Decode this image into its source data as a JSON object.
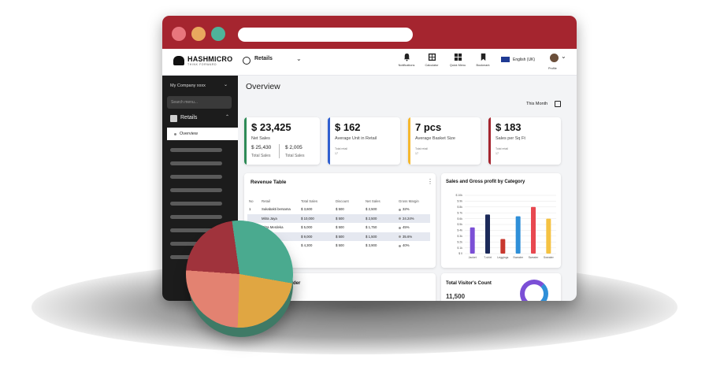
{
  "brand": {
    "name": "HASHMICRO",
    "tagline": "THINK FORWARD"
  },
  "colors": {
    "titlebar": "#a5252f",
    "dot_red": "#e8767d",
    "dot_orange": "#e9a95e",
    "dot_teal": "#4fb39a",
    "sidebar": "#1c1c1c",
    "green": "#2e8b57",
    "blue": "#2f5fd0",
    "yellow": "#f5b82e",
    "maroon": "#a5252f"
  },
  "topbar": {
    "module": "Retails",
    "icons": [
      {
        "name": "notifications",
        "label": "Notifications"
      },
      {
        "name": "calculator",
        "label": "Calculator"
      },
      {
        "name": "quick-menu",
        "label": "Quick Menu"
      },
      {
        "name": "bookmark",
        "label": "Bookmark"
      }
    ],
    "language": "English (UK)",
    "profile_label": "Profile"
  },
  "sidebar": {
    "company": "My Company xxxx",
    "search_placeholder": "Search menu...",
    "section": "Retails",
    "active_item": "Overview"
  },
  "main": {
    "title": "Overview",
    "period": "This Month"
  },
  "cards": [
    {
      "value": "$ 23,425",
      "label": "Net Sales",
      "sales_value": "$ 25,430",
      "sales_label": "Total Sales",
      "retail_value": "$ 2,005",
      "retail_label": "Total Sales"
    },
    {
      "value": "$ 162",
      "label": "Average Unit in Retail",
      "sub1": "Total retail",
      "sub2": "17"
    },
    {
      "value": "7 pcs",
      "label": "Average Basket Size",
      "sub1": "Total retail",
      "sub2": "17"
    },
    {
      "value": "$ 183",
      "label": "Sales per Sq Ft",
      "sub1": "Total retail",
      "sub2": "17"
    }
  ],
  "revenue_table": {
    "title": "Revenue Table",
    "headers": [
      "No",
      "Retail",
      "Total Sales",
      "Discount",
      "Net Sales",
      "Gross Margin"
    ],
    "rows": [
      [
        "1",
        "Sukabakti bersama",
        "$ 3,600",
        "$ 500",
        "$ 2,500",
        "32%"
      ],
      [
        "",
        "Mitra Jaya",
        "$ 10,000",
        "$ 500",
        "$ 2,500",
        "24.24%"
      ],
      [
        "",
        "Mitra Merdeka",
        "$ 5,000",
        "$ 500",
        "$ 1,750",
        "45%"
      ],
      [
        "",
        "",
        "$ 9,000",
        "$ 500",
        "$ 1,500",
        "35.6%"
      ],
      [
        "",
        "",
        "$ 4,300",
        "$ 500",
        "$ 3,900",
        "40%"
      ]
    ]
  },
  "bottom": {
    "order_title": "Order",
    "visitor_title": "Total Visitor's Count",
    "visitor_value": "11,500"
  },
  "chart_data": {
    "type": "bar",
    "title": "Sales and Gross profit by Category",
    "categories": [
      "Jacket",
      "T-shirt",
      "Leggings",
      "Sweater",
      "Sweater",
      "Sweater"
    ],
    "values": [
      4.5,
      6.7,
      2.5,
      6.4,
      8.0,
      6.0
    ],
    "colors": [
      "#7b4fd6",
      "#1c2a5a",
      "#c8382e",
      "#2f8fd8",
      "#e84850",
      "#f5c242"
    ],
    "y_ticks": [
      "$ 10k",
      "$ 9k",
      "$ 8k",
      "$ 7k",
      "$ 6k",
      "$ 5k",
      "$ 4k",
      "$ 3k",
      "$ 2k",
      "$ 1k",
      "$ 0"
    ],
    "ylim": [
      0,
      10
    ],
    "grid": true,
    "xlabel": "",
    "ylabel": ""
  }
}
